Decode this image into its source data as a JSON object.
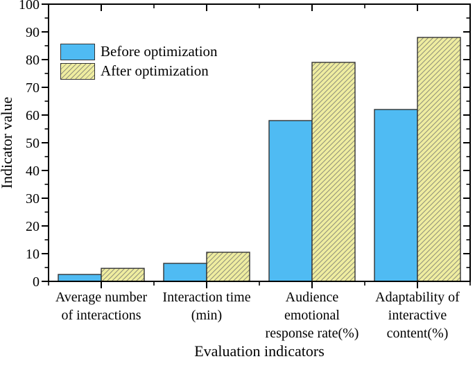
{
  "chart_data": {
    "type": "bar",
    "title": "",
    "xlabel": "Evaluation indicators",
    "ylabel": "Indicator value",
    "categories": [
      "Average number\nof interactions",
      "Interaction time\n(min)",
      "Audience\nemotional\nresponse rate(%)",
      "Adaptability of\ninteractive\ncontent(%)"
    ],
    "series": [
      {
        "name": "Before optimization",
        "values": [
          2.5,
          6.5,
          58,
          62
        ],
        "fill": "#4FBBF3",
        "pattern": "solid"
      },
      {
        "name": "After optimization",
        "values": [
          4.7,
          10.5,
          79,
          88
        ],
        "fill": "#EFEDA0",
        "pattern": "diagonal-hatch",
        "hatch_color": "#90907A"
      }
    ],
    "ylim": [
      0,
      100
    ],
    "y_major_step": 10,
    "y_minor_step": 5,
    "y_tick_labels": [
      "0",
      "10",
      "20",
      "30",
      "40",
      "50",
      "60",
      "70",
      "80",
      "90",
      "100"
    ],
    "grid": "off",
    "legend_position": "upper-left",
    "bar_edge_color": "#333333",
    "axis_color": "#000000",
    "background": "#ffffff"
  }
}
